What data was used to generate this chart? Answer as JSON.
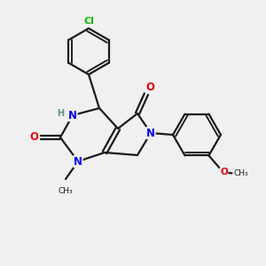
{
  "bg_color": "#f0f0f0",
  "bond_color": "#1a1a1a",
  "bond_width": 1.6,
  "atom_colors": {
    "N": "#0000ee",
    "O": "#ee0000",
    "Cl": "#00bb00",
    "C": "#1a1a1a",
    "H": "#5a9090"
  },
  "font_size_atom": 8.5,
  "font_size_small": 7.0
}
